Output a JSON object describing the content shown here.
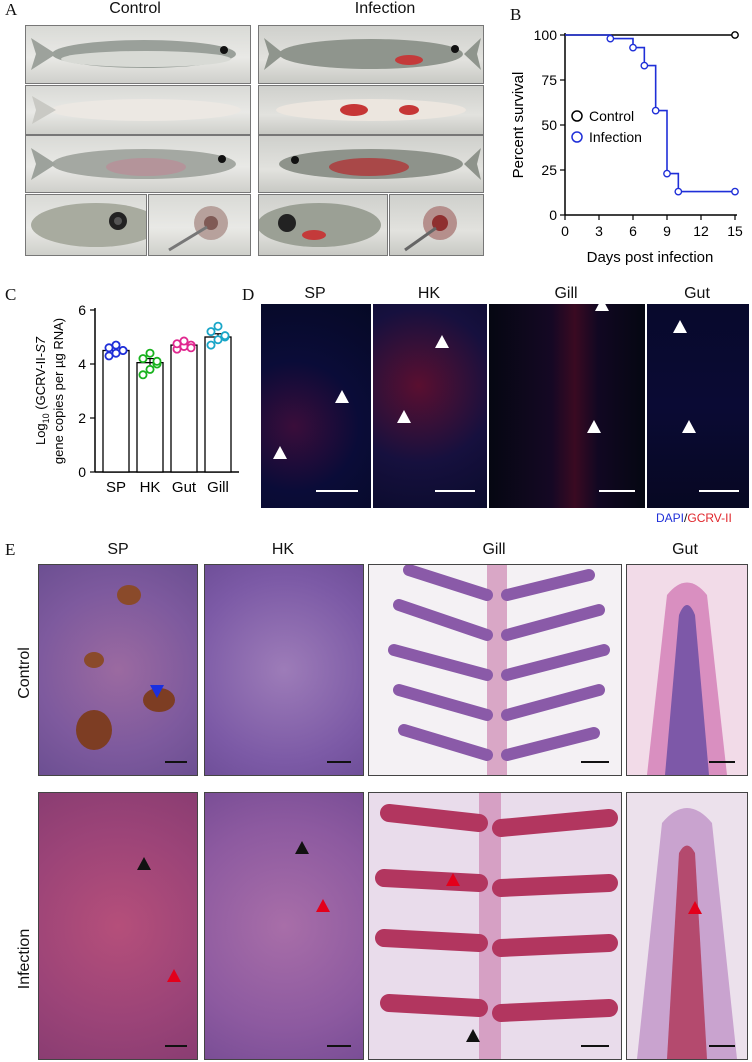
{
  "panels": {
    "A": {
      "letter": "A",
      "control_label": "Control",
      "infection_label": "Infection"
    },
    "B": {
      "letter": "B"
    },
    "C": {
      "letter": "C"
    },
    "D": {
      "letter": "D",
      "titles": [
        "SP",
        "HK",
        "Gill",
        "Gut"
      ],
      "stain_dapi": "DAPI",
      "stain_sep": "/",
      "stain_gcrv": "GCRV-II"
    },
    "E": {
      "letter": "E",
      "titles": [
        "SP",
        "HK",
        "Gill",
        "Gut"
      ],
      "row_labels": [
        "Control",
        "Infection"
      ]
    }
  },
  "chart_data": [
    {
      "type": "line",
      "xlabel": "Days post infection",
      "ylabel": "Percent survival",
      "xlim": [
        0,
        15
      ],
      "ylim": [
        0,
        100
      ],
      "xticks": [
        0,
        3,
        6,
        9,
        12,
        15
      ],
      "yticks": [
        0,
        25,
        50,
        75,
        100
      ],
      "legend": "center-right",
      "series": [
        {
          "name": "Control",
          "color": "#000000",
          "steps": [
            [
              0,
              100
            ],
            [
              15,
              100
            ]
          ],
          "markers": [
            [
              15,
              100
            ]
          ]
        },
        {
          "name": "Infection",
          "color": "#1f2fd8",
          "steps": [
            [
              0,
              100
            ],
            [
              4,
              100
            ],
            [
              4,
              98
            ],
            [
              6,
              98
            ],
            [
              6,
              93
            ],
            [
              7,
              93
            ],
            [
              7,
              83
            ],
            [
              8,
              83
            ],
            [
              8,
              58
            ],
            [
              9,
              58
            ],
            [
              9,
              23
            ],
            [
              10,
              23
            ],
            [
              10,
              13
            ],
            [
              15,
              13
            ]
          ],
          "markers": [
            [
              4,
              98
            ],
            [
              6,
              93
            ],
            [
              7,
              83
            ],
            [
              8,
              58
            ],
            [
              9,
              23
            ],
            [
              10,
              13
            ],
            [
              15,
              13
            ]
          ]
        }
      ]
    },
    {
      "type": "bar",
      "ylabel_prefix": "Log",
      "ylabel_sub": "10",
      "ylabel_main": " (GCRV-II-",
      "ylabel_ital": "S7",
      "ylabel_line2": "gene copies per µg RNA)",
      "categories": [
        "SP",
        "HK",
        "Gut",
        "Gill"
      ],
      "values": [
        4.5,
        4.05,
        4.7,
        5.0
      ],
      "errors": [
        0.1,
        0.15,
        0.07,
        0.12
      ],
      "colors": [
        "#1f2fd8",
        "#18b21e",
        "#e0278f",
        "#1aa6c8"
      ],
      "points": [
        [
          4.3,
          4.4,
          4.5,
          4.6,
          4.7,
          4.5
        ],
        [
          3.6,
          3.8,
          4.0,
          4.2,
          4.4,
          4.1
        ],
        [
          4.55,
          4.65,
          4.7,
          4.75,
          4.85,
          4.6
        ],
        [
          4.7,
          4.9,
          5.0,
          5.2,
          5.4,
          5.05
        ]
      ],
      "ylim": [
        0,
        6
      ],
      "yticks": [
        0,
        2,
        4,
        6
      ]
    }
  ]
}
